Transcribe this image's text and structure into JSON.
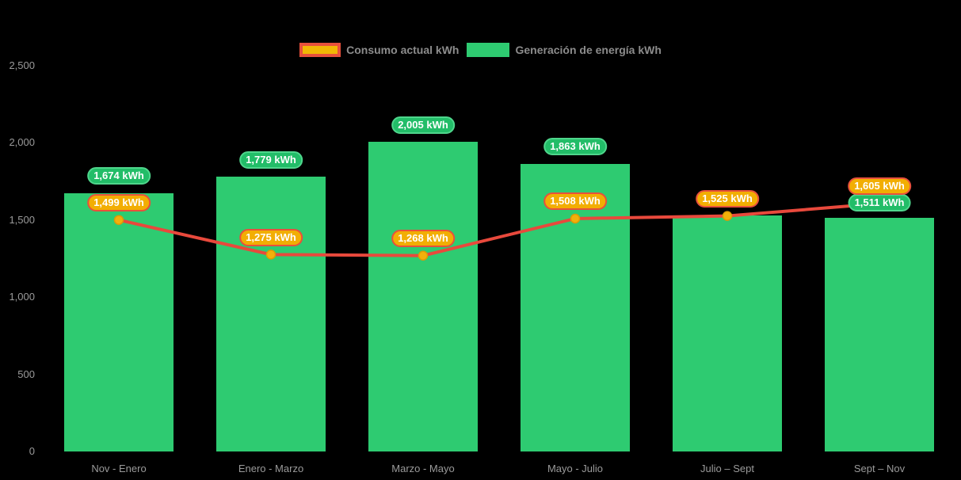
{
  "legend": {
    "items": [
      {
        "label": "Consumo actual kWh",
        "swatch": "yellow-fill-red-outline"
      },
      {
        "label": "Generación de energía kWh",
        "swatch": "green-fill"
      }
    ]
  },
  "chart_data": {
    "type": "bar",
    "subtype": "column-and-line combo",
    "categories": [
      "Nov - Enero",
      "Enero - Marzo",
      "Marzo - Mayo",
      "Mayo - Julio",
      "Julio – Sept",
      "Sept – Nov"
    ],
    "series": [
      {
        "name": "Generación de energía kWh",
        "type": "bar",
        "values": [
          1674,
          1779,
          2005,
          1863,
          1530,
          1511
        ],
        "data_labels": [
          "1,674 kWh",
          "1,779 kWh",
          "2,005 kWh",
          "1,863 kWh",
          null,
          "1,511 kWh"
        ]
      },
      {
        "name": "Consumo actual kWh",
        "type": "line",
        "values": [
          1499,
          1275,
          1268,
          1508,
          1525,
          1605
        ],
        "data_labels": [
          "1,499 kWh",
          "1,275 kWh",
          "1,268 kWh",
          "1,508 kWh",
          "1,525 kWh",
          "1,605 kWh"
        ]
      }
    ],
    "ylabel": "",
    "xlabel": "",
    "ylim": [
      0,
      2500
    ],
    "y_ticks": [
      {
        "value": 0,
        "label": "0"
      },
      {
        "value": 500,
        "label": "500"
      },
      {
        "value": 1000,
        "label": "1,000"
      },
      {
        "value": 1500,
        "label": "1,500"
      },
      {
        "value": 2000,
        "label": "2,000"
      },
      {
        "value": 2500,
        "label": "2,500"
      }
    ],
    "grid": "off",
    "legend_position": "top-center"
  },
  "colors": {
    "background": "#000000",
    "bar_green": "#2ecb71",
    "line_red": "#e8493c",
    "marker_gold": "#f2b10a",
    "marker_stroke": "#dd9a05",
    "pill_green_bg": "#22bd68",
    "pill_green_border": "#4fd68c",
    "pill_yellow_bg": "#f2ae03",
    "pill_yellow_border": "#e8503c",
    "axis_text": "#9a9a9a",
    "legend_text": "#8c8c8c",
    "label_text": "#ffffff"
  }
}
